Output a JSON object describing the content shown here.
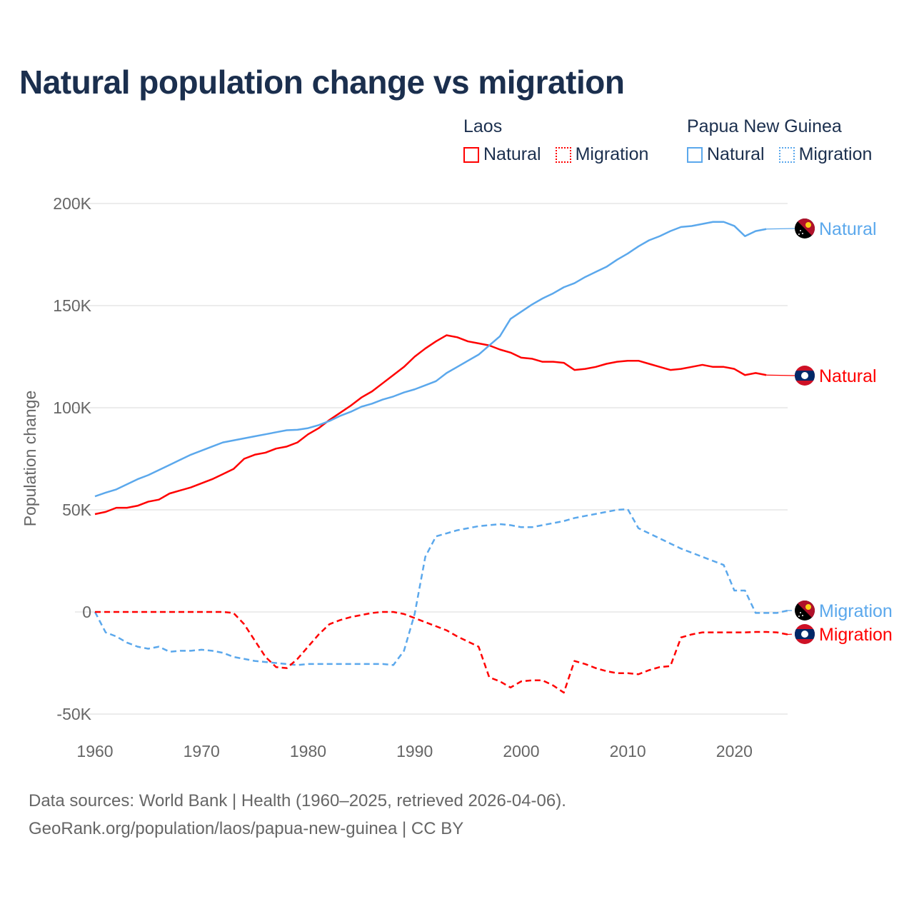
{
  "title": "Natural population change vs migration",
  "legend": {
    "groups": [
      {
        "name": "Laos",
        "items": [
          {
            "label": "Natural",
            "style": "solid"
          },
          {
            "label": "Migration",
            "style": "dotted"
          }
        ],
        "color": "#ff0000"
      },
      {
        "name": "Papua New Guinea",
        "items": [
          {
            "label": "Natural",
            "style": "solid"
          },
          {
            "label": "Migration",
            "style": "dotted"
          }
        ],
        "color": "#5ba8ec"
      }
    ]
  },
  "footer": {
    "line1": "Data sources: World Bank | Health (1960–2025, retrieved 2026-04-06).",
    "line2": "GeoRank.org/population/laos/papua-new-guinea | CC BY"
  },
  "chart_data": {
    "type": "line",
    "title": "Natural population change vs migration",
    "xlabel": "",
    "ylabel": "Population change",
    "xlim": [
      1960,
      2025
    ],
    "ylim": [
      -50000,
      200000
    ],
    "x_ticks": [
      1960,
      1970,
      1980,
      1990,
      2000,
      2010,
      2020
    ],
    "x_tick_labels": [
      "1960",
      "1970",
      "1980",
      "1990",
      "2000",
      "2010",
      "2020"
    ],
    "y_ticks": [
      -50000,
      0,
      50000,
      100000,
      150000,
      200000
    ],
    "y_tick_labels": [
      "-50K",
      "0",
      "50K",
      "100K",
      "150K",
      "200K"
    ],
    "grid": true,
    "legend_position": "top-right",
    "series": [
      {
        "name": "Laos Natural",
        "end_label": "Natural",
        "country": "Laos",
        "color": "#ff0000",
        "dash": false,
        "start": 1960,
        "values": [
          47900,
          49000,
          51000,
          51000,
          52000,
          54000,
          55000,
          58000,
          59500,
          61000,
          63000,
          65000,
          67500,
          70000,
          75000,
          77000,
          78000,
          80000,
          81000,
          83000,
          87000,
          90000,
          94000,
          97500,
          101000,
          105000,
          108000,
          112000,
          116000,
          120000,
          125000,
          129000,
          132500,
          135500,
          134500,
          132500,
          131500,
          130500,
          128500,
          127000,
          124500,
          124000,
          122500,
          122500,
          122000,
          118500,
          119000,
          120000,
          121500,
          122500,
          123000,
          123000,
          121500,
          120000,
          118500,
          119000,
          120000,
          121000,
          120000,
          120000,
          119000,
          116000,
          117000,
          116000
        ]
      },
      {
        "name": "Papua New Guinea Natural",
        "end_label": "Natural",
        "country": "Papua New Guinea",
        "color": "#5ba8ec",
        "dash": false,
        "start": 1960,
        "values": [
          56600,
          58400,
          60000,
          62500,
          65000,
          67000,
          69500,
          72000,
          74500,
          77000,
          79000,
          81000,
          83000,
          84000,
          85000,
          86000,
          87000,
          88000,
          89000,
          89200,
          90000,
          91500,
          93500,
          96000,
          98000,
          100500,
          102000,
          104000,
          105500,
          107500,
          109000,
          111000,
          113000,
          117000,
          120000,
          123000,
          126000,
          130500,
          135000,
          143500,
          147000,
          150500,
          153500,
          156000,
          159000,
          161000,
          164000,
          166500,
          169000,
          172500,
          175500,
          179000,
          182000,
          184000,
          186500,
          188500,
          189000,
          190000,
          191000,
          191000,
          189000,
          184000,
          186500,
          187500
        ]
      },
      {
        "name": "Papua New Guinea Migration",
        "end_label": "Migration",
        "country": "Papua New Guinea",
        "color": "#5ba8ec",
        "dash": true,
        "start": 1960,
        "values": [
          0,
          -10000,
          -12000,
          -15000,
          -17000,
          -18000,
          -17000,
          -19500,
          -19000,
          -19000,
          -18500,
          -19000,
          -20000,
          -22000,
          -23000,
          -24000,
          -24500,
          -25000,
          -25500,
          -26000,
          -25500,
          -25500,
          -25500,
          -25500,
          -25500,
          -25500,
          -25500,
          -25500,
          -26000,
          -19000,
          -1000,
          27000,
          37000,
          38500,
          40000,
          41000,
          42000,
          42500,
          43000,
          42500,
          41500,
          41500,
          42500,
          43500,
          44500,
          46000,
          47000,
          48000,
          49000,
          50000,
          50300,
          41000,
          38500,
          36000,
          33500,
          31000,
          29000,
          27000,
          25000,
          23000,
          10500,
          10500,
          -500,
          -500,
          -500,
          700
        ]
      },
      {
        "name": "Laos Migration",
        "end_label": "Migration",
        "country": "Laos",
        "color": "#ff0000",
        "dash": true,
        "start": 1960,
        "values": [
          0,
          0,
          0,
          0,
          0,
          0,
          0,
          0,
          0,
          0,
          0,
          0,
          0,
          -500,
          -6000,
          -14000,
          -22000,
          -27000,
          -27500,
          -23000,
          -17000,
          -11000,
          -6000,
          -4000,
          -2500,
          -1500,
          -500,
          0,
          0,
          -1000,
          -3000,
          -5000,
          -7000,
          -9000,
          -12000,
          -14500,
          -17000,
          -32000,
          -34000,
          -37000,
          -34000,
          -33500,
          -33500,
          -36000,
          -39500,
          -24000,
          -25500,
          -27500,
          -29000,
          -30000,
          -30000,
          -30500,
          -28500,
          -27000,
          -26500,
          -12500,
          -11000,
          -10000,
          -10000,
          -10000,
          -10000,
          -10000,
          -9800,
          -9800,
          -10000,
          -11000
        ]
      }
    ]
  }
}
